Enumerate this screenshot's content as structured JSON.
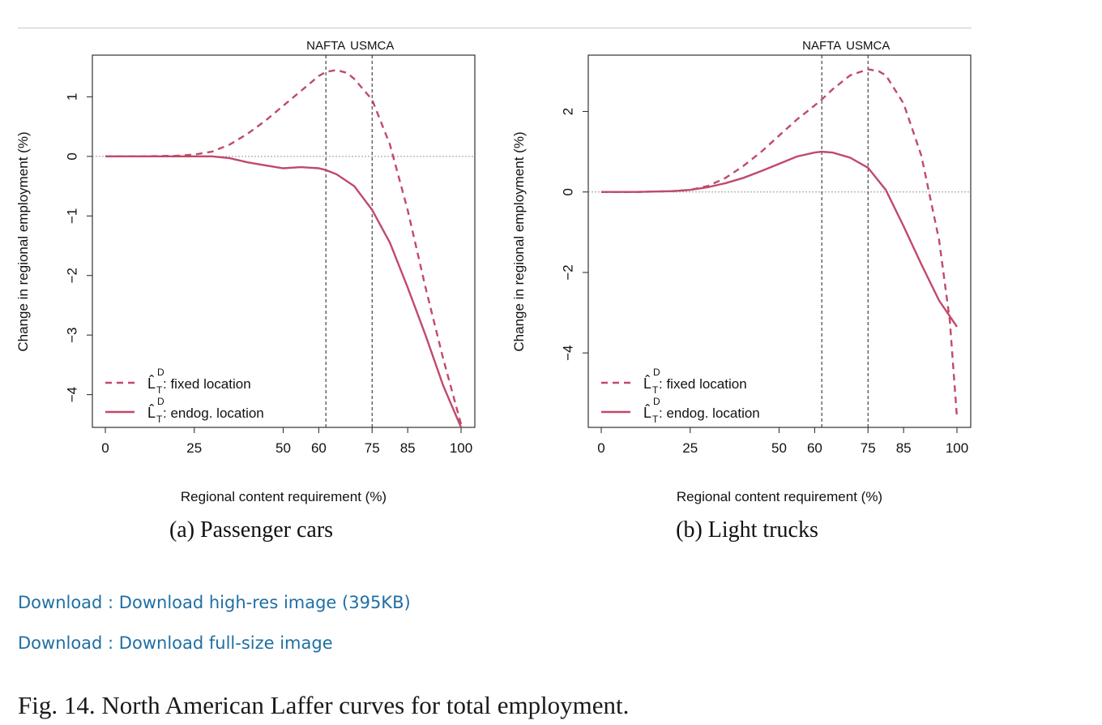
{
  "links": {
    "highres": "Download : Download high-res image (395KB)",
    "fullsize": "Download : Download full-size image"
  },
  "caption": "Fig. 14. North American Laffer curves for total employment.",
  "colors": {
    "series": "#c04a6a",
    "link": "#1f6fa5"
  },
  "chart_data": [
    {
      "type": "line",
      "subtitle": "(a) Passenger cars",
      "xlabel": "Regional content requirement (%)",
      "ylabel": "Change  in regional employment (%)",
      "xlim": [
        0,
        100
      ],
      "ylim": [
        -4.55,
        1.7
      ],
      "xticks": [
        0,
        25,
        50,
        60,
        75,
        85,
        100
      ],
      "yticks": [
        1,
        0,
        -1,
        -2,
        -3,
        -4
      ],
      "ytick_labels": [
        "1",
        "0",
        "−1",
        "−2",
        "−3",
        "−4"
      ],
      "vlines": [
        {
          "x": 62,
          "label": "NAFTA"
        },
        {
          "x": 75,
          "label": "USMCA"
        }
      ],
      "legend": {
        "position": "bottom-left",
        "entries": [
          {
            "sym": "L̂",
            "sup": "D",
            "sub": "T",
            "text": ": fixed location"
          },
          {
            "sym": "L̂",
            "sup": "D",
            "sub": "T",
            "text": ": endog. location"
          }
        ]
      },
      "series": [
        {
          "style": "dashed",
          "x": [
            0,
            10,
            20,
            25,
            30,
            35,
            40,
            45,
            50,
            55,
            60,
            62,
            65,
            68,
            70,
            75,
            80,
            85,
            90,
            95,
            100
          ],
          "y": [
            0,
            0,
            0.01,
            0.03,
            0.08,
            0.2,
            0.38,
            0.6,
            0.85,
            1.1,
            1.35,
            1.42,
            1.45,
            1.4,
            1.3,
            0.95,
            0.2,
            -0.9,
            -2.2,
            -3.4,
            -4.5
          ]
        },
        {
          "style": "solid",
          "x": [
            0,
            10,
            20,
            30,
            35,
            40,
            45,
            50,
            55,
            60,
            62,
            65,
            70,
            75,
            80,
            85,
            90,
            95,
            100
          ],
          "y": [
            0,
            0,
            0,
            0,
            -0.03,
            -0.1,
            -0.15,
            -0.2,
            -0.18,
            -0.2,
            -0.23,
            -0.3,
            -0.5,
            -0.9,
            -1.45,
            -2.2,
            -3.0,
            -3.85,
            -4.55
          ]
        }
      ]
    },
    {
      "type": "line",
      "subtitle": "(b) Light trucks",
      "xlabel": "Regional content requirement (%)",
      "ylabel": "Change  in regional employment (%)",
      "xlim": [
        0,
        100
      ],
      "ylim": [
        -5.85,
        3.4
      ],
      "xticks": [
        0,
        25,
        50,
        60,
        75,
        85,
        100
      ],
      "yticks": [
        2,
        0,
        -2,
        -4
      ],
      "ytick_labels": [
        "2",
        "0",
        "−2",
        "−4"
      ],
      "vlines": [
        {
          "x": 62,
          "label": "NAFTA"
        },
        {
          "x": 75,
          "label": "USMCA"
        }
      ],
      "legend": {
        "position": "bottom-left",
        "entries": [
          {
            "sym": "L̂",
            "sup": "D",
            "sub": "T",
            "text": ": fixed location"
          },
          {
            "sym": "L̂",
            "sup": "D",
            "sub": "T",
            "text": ": endog. location"
          }
        ]
      },
      "series": [
        {
          "style": "dashed",
          "x": [
            0,
            10,
            20,
            25,
            30,
            35,
            40,
            45,
            50,
            55,
            60,
            62,
            65,
            70,
            75,
            78,
            80,
            85,
            90,
            95,
            98,
            100
          ],
          "y": [
            0,
            0,
            0.02,
            0.05,
            0.15,
            0.35,
            0.65,
            1.0,
            1.4,
            1.8,
            2.15,
            2.3,
            2.55,
            2.9,
            3.05,
            3.0,
            2.9,
            2.2,
            0.9,
            -1.2,
            -3.2,
            -5.6
          ]
        },
        {
          "style": "solid",
          "x": [
            0,
            10,
            20,
            25,
            30,
            35,
            40,
            45,
            50,
            55,
            60,
            62,
            65,
            70,
            75,
            80,
            85,
            90,
            95,
            100
          ],
          "y": [
            0,
            0,
            0.02,
            0.05,
            0.12,
            0.22,
            0.35,
            0.52,
            0.7,
            0.88,
            0.98,
            1.0,
            0.98,
            0.85,
            0.6,
            0.05,
            -0.85,
            -1.8,
            -2.7,
            -3.35
          ]
        }
      ]
    }
  ]
}
